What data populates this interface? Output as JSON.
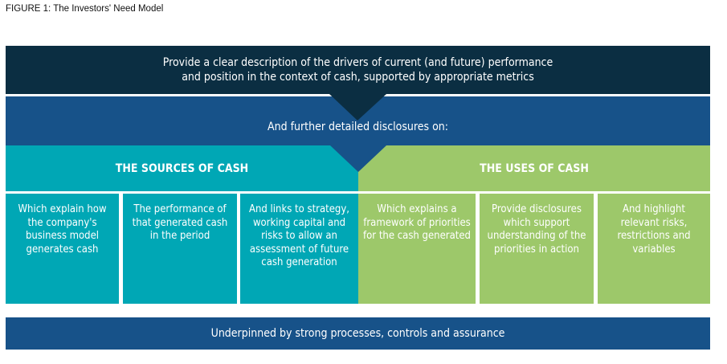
{
  "figure_title": "FIGURE 1: The Investors' Need Model",
  "top": {
    "line1": "Provide a clear description of the drivers of current (and future) performance",
    "line2": "and position in the context of cash, supported by appropriate metrics"
  },
  "middle": "And further detailed disclosures on:",
  "sources": {
    "heading": "THE SOURCES OF CASH",
    "items": [
      "Which explain how the company's business model generates cash",
      "The performance of that generated cash in the period",
      "And links to strategy, working capital and risks to allow an assessment of future cash generation"
    ]
  },
  "uses": {
    "heading": "THE USES OF CASH",
    "items": [
      "Which explains a framework of priorities for the cash generated",
      "Provide disclosures which support understanding of the priorities in action",
      "And highlight relevant risks, restrictions and variables"
    ]
  },
  "bottom": "Underpinned by strong processes, controls and assurance",
  "colors": {
    "dark_navy": "#0b2e42",
    "blue": "#175289",
    "teal": "#00a7b5",
    "green": "#9dc86a"
  }
}
